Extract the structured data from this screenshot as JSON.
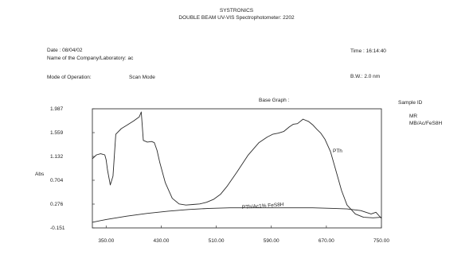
{
  "header": {
    "title": "SYSTRONICS",
    "subtitle": "DOUBLE BEAM UV-VIS Spectrophotometer: 2202"
  },
  "info": {
    "date": "Date : 08/04/02",
    "company": "Name of the Company/Laboratory: ac",
    "mode_label": "Mode of Operation:",
    "mode_value": "Scan Mode",
    "time": "Time : 16:14:40",
    "bw": "B.W.: 2.0 nm",
    "base_graph": "Base Graph :",
    "sample_id_label": "Sample ID",
    "sample_id_values": [
      "MR",
      "MB/Ac/FeS8H"
    ]
  },
  "chart_data": {
    "type": "line",
    "xlabel": "",
    "ylabel": "Abs",
    "x_ticks": [
      "350.00",
      "430.00",
      "510.00",
      "590.00",
      "670.00",
      "750.00"
    ],
    "y_ticks": [
      "1.987",
      "1.559",
      "1.132",
      "0.704",
      "0.276",
      "-0.151"
    ],
    "xlim": [
      330,
      750
    ],
    "ylim": [
      -0.151,
      1.987
    ],
    "series": [
      {
        "name": "PTh",
        "x": [
          330,
          336,
          342,
          348,
          350,
          352,
          356,
          360,
          364,
          372,
          380,
          390,
          398,
          401,
          404,
          410,
          416,
          420,
          424,
          428,
          436,
          446,
          456,
          466,
          476,
          486,
          496,
          506,
          516,
          526,
          540,
          556,
          572,
          584,
          592,
          600,
          608,
          616,
          622,
          628,
          636,
          644,
          650,
          656,
          662,
          668,
          676,
          684,
          692,
          700,
          712,
          724,
          738,
          750
        ],
        "y": [
          1.09,
          1.16,
          1.18,
          1.16,
          1.07,
          0.89,
          0.62,
          0.78,
          1.53,
          1.63,
          1.69,
          1.77,
          1.84,
          1.93,
          1.42,
          1.39,
          1.4,
          1.38,
          1.24,
          1.02,
          0.66,
          0.38,
          0.28,
          0.26,
          0.27,
          0.28,
          0.31,
          0.36,
          0.45,
          0.6,
          0.85,
          1.15,
          1.38,
          1.48,
          1.53,
          1.55,
          1.58,
          1.66,
          1.71,
          1.72,
          1.8,
          1.76,
          1.7,
          1.62,
          1.55,
          1.44,
          1.22,
          0.87,
          0.52,
          0.26,
          0.1,
          0.04,
          0.03,
          0.04
        ]
      },
      {
        "name": "",
        "x": [
          330,
          350,
          380,
          410,
          440,
          470,
          500,
          530,
          560,
          590,
          620,
          650,
          680,
          700,
          720,
          735,
          742,
          750
        ],
        "y": [
          -0.05,
          0.0,
          0.06,
          0.11,
          0.15,
          0.18,
          0.2,
          0.21,
          0.21,
          0.21,
          0.21,
          0.21,
          0.2,
          0.19,
          0.16,
          0.1,
          0.13,
          0.02
        ]
      }
    ],
    "annotations": [
      "PTh",
      "PTh/Ac1% FeS8H"
    ],
    "grid": false,
    "legend": "none"
  }
}
